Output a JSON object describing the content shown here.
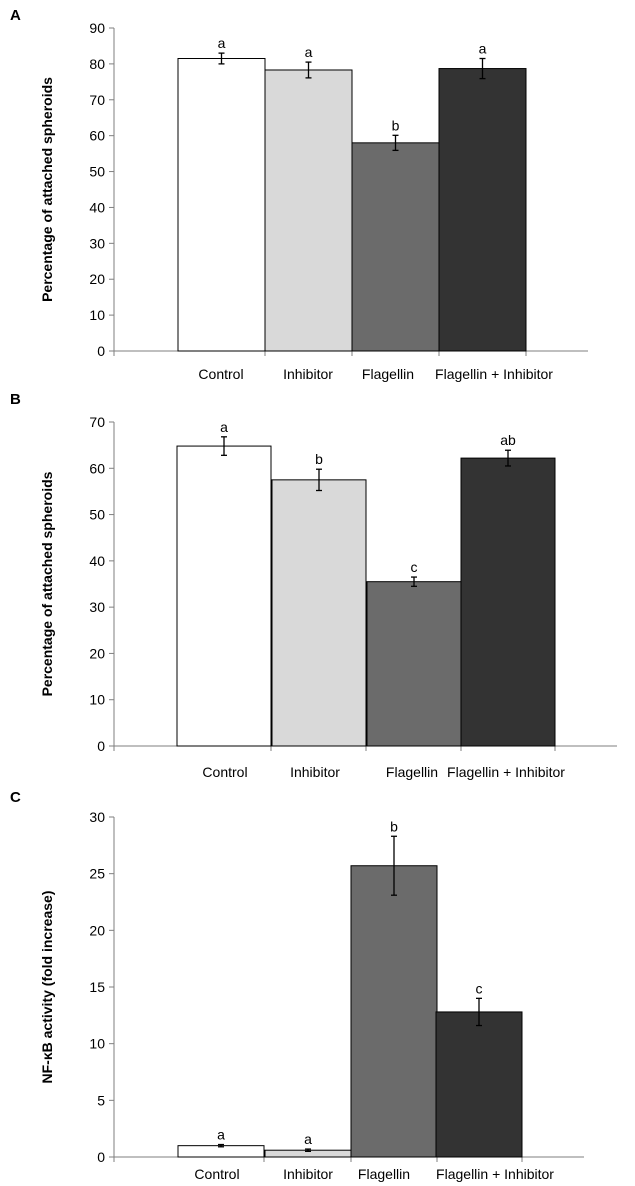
{
  "chart_data": [
    {
      "panel": "A",
      "type": "bar",
      "categories": [
        "Control",
        "Inhibitor",
        "Flagellin",
        "Flagellin + Inhibitor"
      ],
      "values": [
        81.5,
        78.3,
        58.0,
        78.7
      ],
      "errors": [
        1.5,
        2.2,
        2.1,
        2.8
      ],
      "significance": [
        "a",
        "a",
        "b",
        "a"
      ],
      "bar_colors": [
        "#ffffff",
        "#d9d9d9",
        "#6b6b6b",
        "#333333"
      ],
      "ylabel": "Percentage of attached spheroids",
      "ylim": [
        0,
        90
      ],
      "yticks": [
        0,
        10,
        20,
        30,
        40,
        50,
        60,
        70,
        80,
        90
      ],
      "grid": false,
      "legend": "none"
    },
    {
      "panel": "B",
      "type": "bar",
      "categories": [
        "Control",
        "Inhibitor",
        "Flagellin",
        "Flagellin + Inhibitor"
      ],
      "values": [
        64.8,
        57.5,
        35.5,
        62.2
      ],
      "errors": [
        2.0,
        2.3,
        1.0,
        1.7
      ],
      "significance": [
        "a",
        "b",
        "c",
        "ab"
      ],
      "bar_colors": [
        "#ffffff",
        "#d9d9d9",
        "#6b6b6b",
        "#333333"
      ],
      "ylabel": "Percentage of attached spheroids",
      "ylim": [
        0,
        70
      ],
      "yticks": [
        0,
        10,
        20,
        30,
        40,
        50,
        60,
        70
      ],
      "grid": false,
      "legend": "none"
    },
    {
      "panel": "C",
      "type": "bar",
      "categories": [
        "Control",
        "Inhibitor",
        "Flagellin",
        "Flagellin + Inhibitor"
      ],
      "values": [
        1.0,
        0.6,
        25.7,
        12.8
      ],
      "errors": [
        0.1,
        0.1,
        2.6,
        1.2
      ],
      "significance": [
        "a",
        "a",
        "b",
        "c"
      ],
      "bar_colors": [
        "#ffffff",
        "#d9d9d9",
        "#6b6b6b",
        "#333333"
      ],
      "ylabel": "NF-κB activity (fold increase)",
      "ylim": [
        0,
        30
      ],
      "yticks": [
        0,
        5,
        10,
        15,
        20,
        25,
        30
      ],
      "grid": false,
      "legend": "none"
    }
  ]
}
